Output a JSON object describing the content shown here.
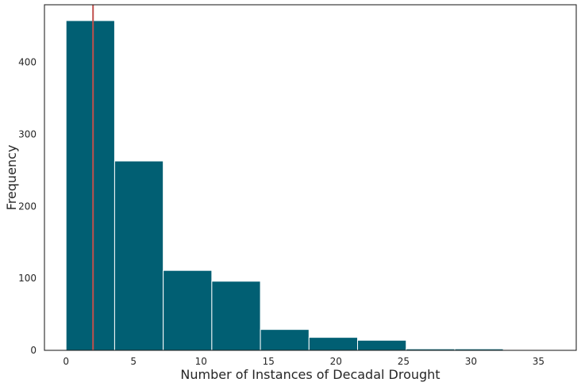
{
  "chart_data": {
    "type": "bar",
    "title": "",
    "xlabel": "Number of Instances of Decadal Drought",
    "ylabel": "Frequency",
    "xlim": [
      -1.6,
      37.8
    ],
    "ylim": [
      0,
      480
    ],
    "xticks": [
      0,
      5,
      10,
      15,
      20,
      25,
      30,
      35
    ],
    "yticks": [
      0,
      100,
      200,
      300,
      400
    ],
    "bins": [
      {
        "x0": 0,
        "x1": 3.6,
        "count": 458
      },
      {
        "x0": 3.6,
        "x1": 7.2,
        "count": 263
      },
      {
        "x0": 7.2,
        "x1": 10.8,
        "count": 111
      },
      {
        "x0": 10.8,
        "x1": 14.4,
        "count": 96
      },
      {
        "x0": 14.4,
        "x1": 18.0,
        "count": 29
      },
      {
        "x0": 18.0,
        "x1": 21.6,
        "count": 18
      },
      {
        "x0": 21.6,
        "x1": 25.2,
        "count": 14
      },
      {
        "x0": 25.2,
        "x1": 28.8,
        "count": 2
      },
      {
        "x0": 28.8,
        "x1": 32.4,
        "count": 2
      },
      {
        "x0": 32.4,
        "x1": 36.0,
        "count": 1
      }
    ],
    "reference_line_x": 2,
    "bar_color": "#015f73",
    "reference_line_color": "#c0504d",
    "grid": false
  }
}
